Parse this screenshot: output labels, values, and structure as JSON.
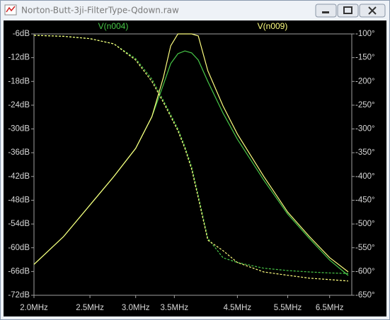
{
  "window": {
    "title": "Norton-Butt-3ji-FilterType-Qdown.raw"
  },
  "chart_data": {
    "type": "line",
    "x": [
      2000000,
      2250000,
      2500000,
      2750000,
      3000000,
      3200000,
      3350000,
      3450000,
      3550000,
      3650000,
      3750000,
      3850000,
      4000000,
      4250000,
      4500000,
      5000000,
      5500000,
      6000000,
      6500000,
      7000000
    ],
    "log_x": true,
    "xlim": [
      2000000,
      7100000
    ],
    "xticks": [
      {
        "value": 2000000,
        "label": "2.0MHz"
      },
      {
        "value": 2500000,
        "label": "2.5MHz"
      },
      {
        "value": 3000000,
        "label": "3.0MHz"
      },
      {
        "value": 3500000,
        "label": "3.5MHz"
      },
      {
        "value": 4500000,
        "label": "4.5MHz"
      },
      {
        "value": 5500000,
        "label": "5.5MHz"
      },
      {
        "value": 6500000,
        "label": "6.5MHz"
      }
    ],
    "ylim": [
      -72,
      -6
    ],
    "yticks": [
      {
        "value": -6,
        "label": "-6dB"
      },
      {
        "value": -12,
        "label": "-12dB"
      },
      {
        "value": -18,
        "label": "-18dB"
      },
      {
        "value": -24,
        "label": "-24dB"
      },
      {
        "value": -30,
        "label": "-30dB"
      },
      {
        "value": -36,
        "label": "-36dB"
      },
      {
        "value": -42,
        "label": "-42dB"
      },
      {
        "value": -48,
        "label": "-48dB"
      },
      {
        "value": -54,
        "label": "-54dB"
      },
      {
        "value": -60,
        "label": "-60dB"
      },
      {
        "value": -66,
        "label": "-66dB"
      },
      {
        "value": -72,
        "label": "-72dB"
      }
    ],
    "y2lim": [
      -650,
      -100
    ],
    "y2ticks": [
      {
        "value": -100,
        "label": "-100°"
      },
      {
        "value": -150,
        "label": "-150°"
      },
      {
        "value": -200,
        "label": "-200°"
      },
      {
        "value": -250,
        "label": "-250°"
      },
      {
        "value": -300,
        "label": "-300°"
      },
      {
        "value": -350,
        "label": "-350°"
      },
      {
        "value": -400,
        "label": "-400°"
      },
      {
        "value": -450,
        "label": "-450°"
      },
      {
        "value": -500,
        "label": "-500°"
      },
      {
        "value": -550,
        "label": "-550°"
      },
      {
        "value": -600,
        "label": "-600°"
      },
      {
        "value": -650,
        "label": "-650°"
      }
    ],
    "grid": false,
    "series": [
      {
        "name": "V(n004)",
        "color": "#48c848",
        "values": [
          -64.2,
          -57.2,
          -49.2,
          -42,
          -34.9,
          -26.9,
          -18.8,
          -13.5,
          -11,
          -10.3,
          -10.8,
          -12.6,
          -18,
          -26,
          -32.6,
          -42.9,
          -51.5,
          -57.7,
          -63.1,
          -67
        ],
        "y2_values": [
          -103,
          -105,
          -110,
          -121,
          -152,
          -195,
          -240,
          -270,
          -300,
          -337,
          -380,
          -440,
          -530,
          -571,
          -581,
          -593,
          -598,
          -601,
          -603,
          -604
        ]
      },
      {
        "name": "V(n009)",
        "color": "#ffff80",
        "values": [
          -64.2,
          -57.2,
          -49.2,
          -42,
          -34.9,
          -26.9,
          -17,
          -9,
          -6,
          -6,
          -6,
          -6.5,
          -15.3,
          -24.2,
          -31.3,
          -42,
          -51,
          -57.2,
          -62.5,
          -66.1
        ],
        "y2_values": [
          -103,
          -105,
          -110,
          -121,
          -155,
          -200,
          -244,
          -274,
          -304,
          -341,
          -385,
          -445,
          -534,
          -556,
          -581,
          -601,
          -608,
          -614,
          -617,
          -620
        ]
      }
    ]
  }
}
